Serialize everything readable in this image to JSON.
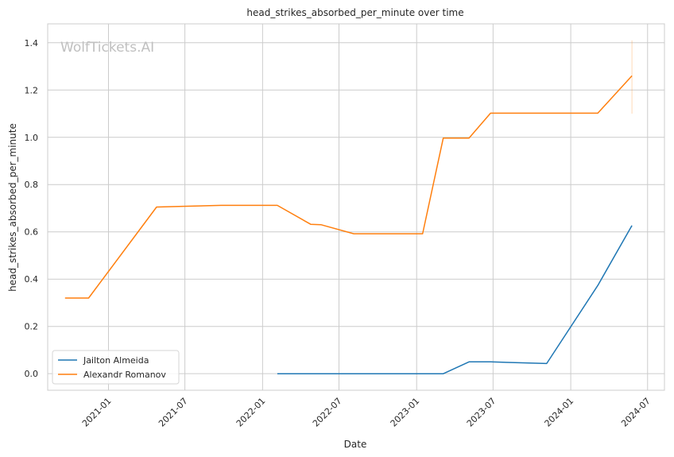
{
  "chart_data": {
    "type": "line",
    "title": "head_strikes_absorbed_per_minute over time",
    "xlabel": "Date",
    "ylabel": "head_strikes_absorbed_per_minute",
    "watermark": "WolfTickets.AI",
    "xlim": [
      "2020-08-10",
      "2024-08-10"
    ],
    "ylim": [
      -0.07,
      1.48
    ],
    "x_ticks": [
      "2021-01-01",
      "2021-07-01",
      "2022-01-01",
      "2022-07-01",
      "2023-01-01",
      "2023-07-01",
      "2024-01-01",
      "2024-07-01"
    ],
    "x_tick_labels": [
      "2021-01",
      "2021-07",
      "2022-01",
      "2022-07",
      "2023-01",
      "2023-07",
      "2024-01",
      "2024-07"
    ],
    "y_ticks": [
      0.0,
      0.2,
      0.4,
      0.6,
      0.8,
      1.0,
      1.2,
      1.4
    ],
    "y_tick_labels": [
      "0.0",
      "0.2",
      "0.4",
      "0.6",
      "0.8",
      "1.0",
      "1.2",
      "1.4"
    ],
    "grid": true,
    "legend_position": "lower-left",
    "series": [
      {
        "name": "Jailton Almeida",
        "color": "#1f77b4",
        "x": [
          "2022-02-05",
          "2023-03-05",
          "2023-05-05",
          "2023-06-25",
          "2023-11-05",
          "2024-03-05",
          "2024-05-25"
        ],
        "y": [
          0.0,
          0.0,
          0.05,
          0.05,
          0.043,
          0.373,
          0.627
        ]
      },
      {
        "name": "Alexandr Romanov",
        "color": "#ff7f0e",
        "x": [
          "2020-09-20",
          "2020-11-15",
          "2021-04-25",
          "2021-06-25",
          "2021-09-25",
          "2021-12-25",
          "2022-02-05",
          "2022-04-25",
          "2022-05-20",
          "2022-08-05",
          "2022-10-15",
          "2023-01-15",
          "2023-03-05",
          "2023-05-05",
          "2023-06-25",
          "2023-10-15",
          "2024-03-05",
          "2024-05-25"
        ],
        "y": [
          0.32,
          0.32,
          0.705,
          0.708,
          0.712,
          0.712,
          0.712,
          0.632,
          0.63,
          0.592,
          0.592,
          0.592,
          0.997,
          0.997,
          1.102,
          1.102,
          1.102,
          1.26
        ]
      }
    ],
    "error_bar": {
      "series": "Alexandr Romanov",
      "x": "2024-05-25",
      "low": 1.1,
      "high": 1.41
    }
  }
}
